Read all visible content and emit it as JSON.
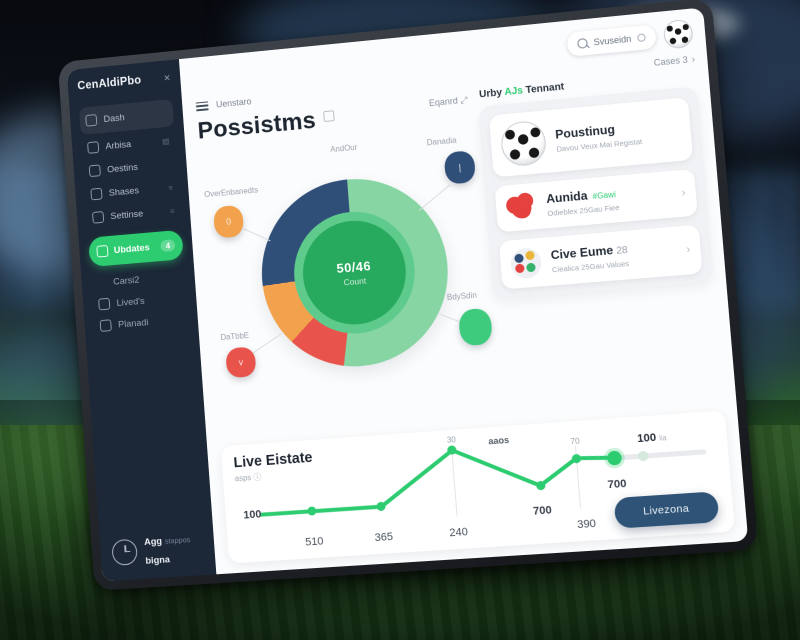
{
  "icons": {
    "close": "✕",
    "chevron_right": "›",
    "expand": "⤢",
    "info": "ⓘ"
  },
  "topbar": {
    "search_text": "Svuseidn"
  },
  "sidebar": {
    "logo": "CenAldiPbo",
    "items": [
      {
        "label": "Dash"
      },
      {
        "label": "Arbisa"
      },
      {
        "label": "Oestins"
      },
      {
        "label": "Shases"
      },
      {
        "label": "Settinse"
      }
    ],
    "active_item": {
      "label": "Ubdates",
      "badge": "4"
    },
    "secondary_items": [
      {
        "label": "Carsi2"
      },
      {
        "label": "Lived's"
      },
      {
        "label": "Planadi"
      }
    ],
    "user": {
      "name_line1": "Agg",
      "meta": "stappos",
      "name_line2": "bigna"
    }
  },
  "header": {
    "nav_label": "Uenstaro",
    "cases_link": "Cases 3",
    "page_title": "Possistms",
    "expand_label": "Eqanrd"
  },
  "right_panel": {
    "title_part1": "Urby",
    "title_accent": "AJs",
    "title_part2": "Tennant",
    "cards": [
      {
        "title": "Poustinug",
        "subtitle": "Davou Veux Mai Registat"
      },
      {
        "title": "Aunida",
        "tag": "#Gawi",
        "subtitle": "Odieblex 25Gau Fiee"
      },
      {
        "title": "Cive Eume",
        "title_suffix": "28",
        "subtitle": "Ciealica 25Gau Values"
      }
    ]
  },
  "bottom": {
    "title": "Live Eistate",
    "subtitle": "asps",
    "slider_value": "100",
    "slider_unit": "lia",
    "button_label": "Livezona"
  },
  "colors": {
    "accent_green": "#2ecc71",
    "donut_green": "#86d5a2",
    "donut_red": "#e8544b",
    "donut_orange": "#f2a24c",
    "donut_navy": "#2f4f78",
    "button_navy": "#2e5377",
    "sidebar_bg": "#1c2737"
  },
  "chart_data": [
    {
      "type": "pie",
      "title": "AndOur",
      "center_label": "50/46",
      "center_sub": "Count",
      "legend_position": "around",
      "slices": [
        {
          "label": "BdySdin",
          "value": 53,
          "color": "#86d5a2"
        },
        {
          "label": "DaTbbE",
          "value": 10,
          "color": "#e8544b"
        },
        {
          "label": "OverEnbanedts",
          "value": 11,
          "color": "#f2a24c"
        },
        {
          "label": "Danadia",
          "value": 26,
          "color": "#2f4f78"
        }
      ]
    },
    {
      "type": "line",
      "title": "Live Eistate",
      "color": "#2ecc71",
      "grid": false,
      "points": [
        [
          4,
          62
        ],
        [
          15,
          62
        ],
        [
          30,
          62
        ],
        [
          46,
          12
        ],
        [
          64,
          52
        ],
        [
          72,
          28
        ],
        [
          80,
          30
        ]
      ],
      "x_labels": [
        {
          "text": "510",
          "x": 15
        },
        {
          "text": "365",
          "x": 30
        },
        {
          "text": "240",
          "x": 46
        },
        {
          "text": "390",
          "x": 73
        }
      ],
      "point_labels": [
        {
          "text": "100",
          "x": 2,
          "y": 62,
          "cls": "lg"
        },
        {
          "text": "30",
          "x": 46,
          "y": 2,
          "cls": "sm"
        },
        {
          "text": "aaos",
          "x": 56,
          "y": 6,
          "cls": "md"
        },
        {
          "text": "70",
          "x": 72,
          "y": 12,
          "cls": "sm"
        },
        {
          "text": "700",
          "x": 64,
          "y": 76,
          "cls": "lg"
        },
        {
          "text": "700",
          "x": 80,
          "y": 56,
          "cls": "lg"
        }
      ],
      "guides": [
        46,
        72
      ]
    }
  ]
}
